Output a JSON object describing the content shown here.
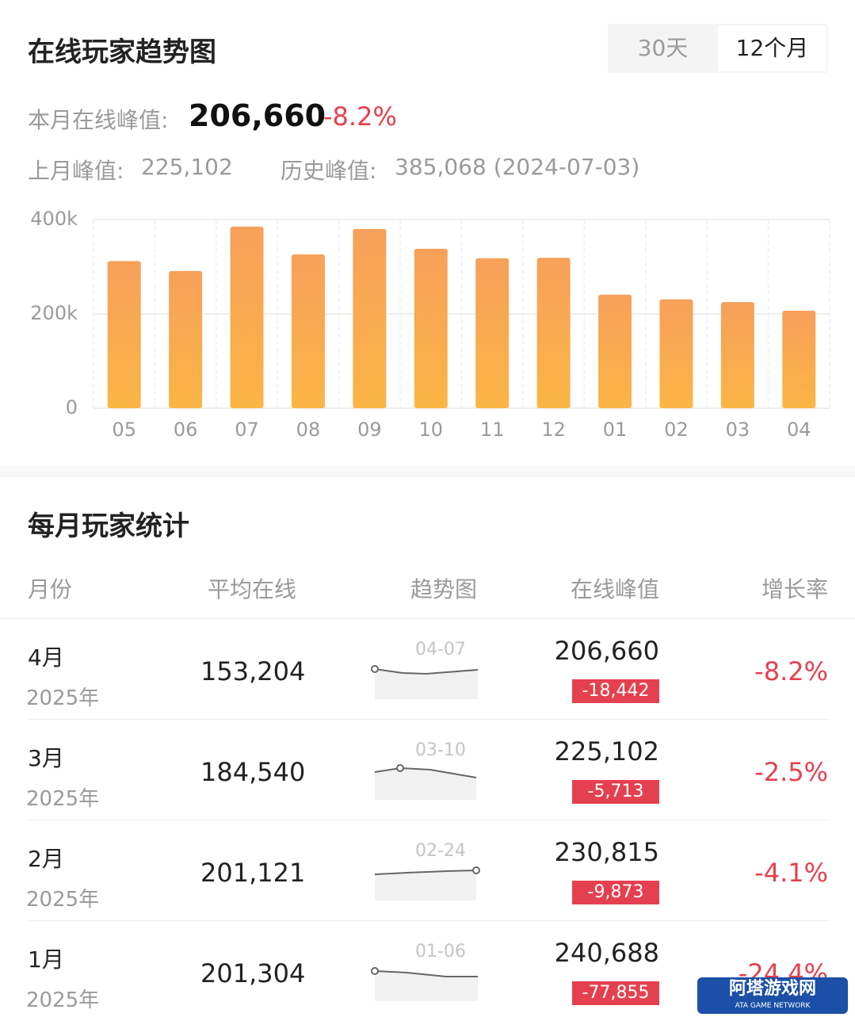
{
  "header": {
    "title": "在线玩家趋势图",
    "tabs": [
      "30天",
      "12个月"
    ]
  },
  "summary": {
    "current_label": "本月在线峰值:",
    "current_value": "206,660",
    "current_change": "-8.2%",
    "last_label": "上月峰值:",
    "last_value": "225,102",
    "history_label": "历史峰值:",
    "history_value": "385,068 (2024-07-03)"
  },
  "chart_data": {
    "type": "bar",
    "categories": [
      "05",
      "06",
      "07",
      "08",
      "09",
      "10",
      "11",
      "12",
      "01",
      "02",
      "03",
      "04"
    ],
    "values": [
      312000,
      291000,
      385068,
      326000,
      380000,
      338000,
      318000,
      319000,
      240688,
      230815,
      225102,
      206660
    ],
    "color": "#f8a24e",
    "ylim": [
      0,
      400000
    ],
    "yticks": [
      0,
      {
        "value": 200000,
        "label": "200k"
      },
      {
        "value": 400000,
        "label": "400k"
      }
    ],
    "grid": true
  },
  "table": {
    "title": "每月玩家统计",
    "columns": [
      "月份",
      "平均在线",
      "趋势图",
      "在线峰值",
      "增长率"
    ],
    "rows": [
      {
        "month": "4月",
        "year": "2025年",
        "average": "153,204",
        "trend_date": "04-07",
        "peak": "206,660",
        "peak_change": "-18,442",
        "growth": "-8.2%"
      },
      {
        "month": "3月",
        "year": "2025年",
        "average": "184,540",
        "trend_date": "03-10",
        "peak": "225,102",
        "peak_change": "-5,713",
        "growth": "-2.5%"
      },
      {
        "month": "2月",
        "year": "2025年",
        "average": "201,121",
        "trend_date": "02-24",
        "peak": "230,815",
        "peak_change": "-9,873",
        "growth": "-4.1%"
      },
      {
        "month": "1月",
        "year": "2025年",
        "average": "201,304",
        "trend_date": "01-06",
        "peak": "240,688",
        "peak_change": "-77,855",
        "growth": "-24.4%"
      }
    ]
  },
  "watermark": {
    "name": "阿塔游戏网",
    "subtitle": "ATA GAME NETWORK"
  }
}
